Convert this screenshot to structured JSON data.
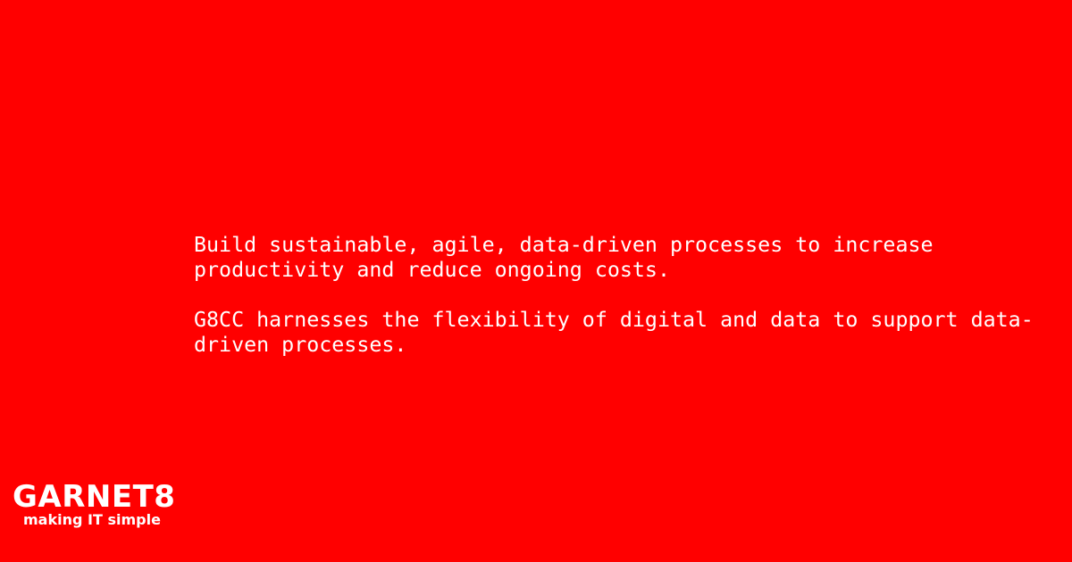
{
  "background_color": "#ff0000",
  "text_color": "#ffffff",
  "paragraphs": {
    "first": "Build sustainable, agile, data-driven processes to increase\nproductivity and reduce ongoing costs.",
    "second": "G8CC harnesses the flexibility of digital and data to support data-\ndriven processes."
  },
  "logo": {
    "name": "GARNET8",
    "tagline": "making IT simple"
  }
}
